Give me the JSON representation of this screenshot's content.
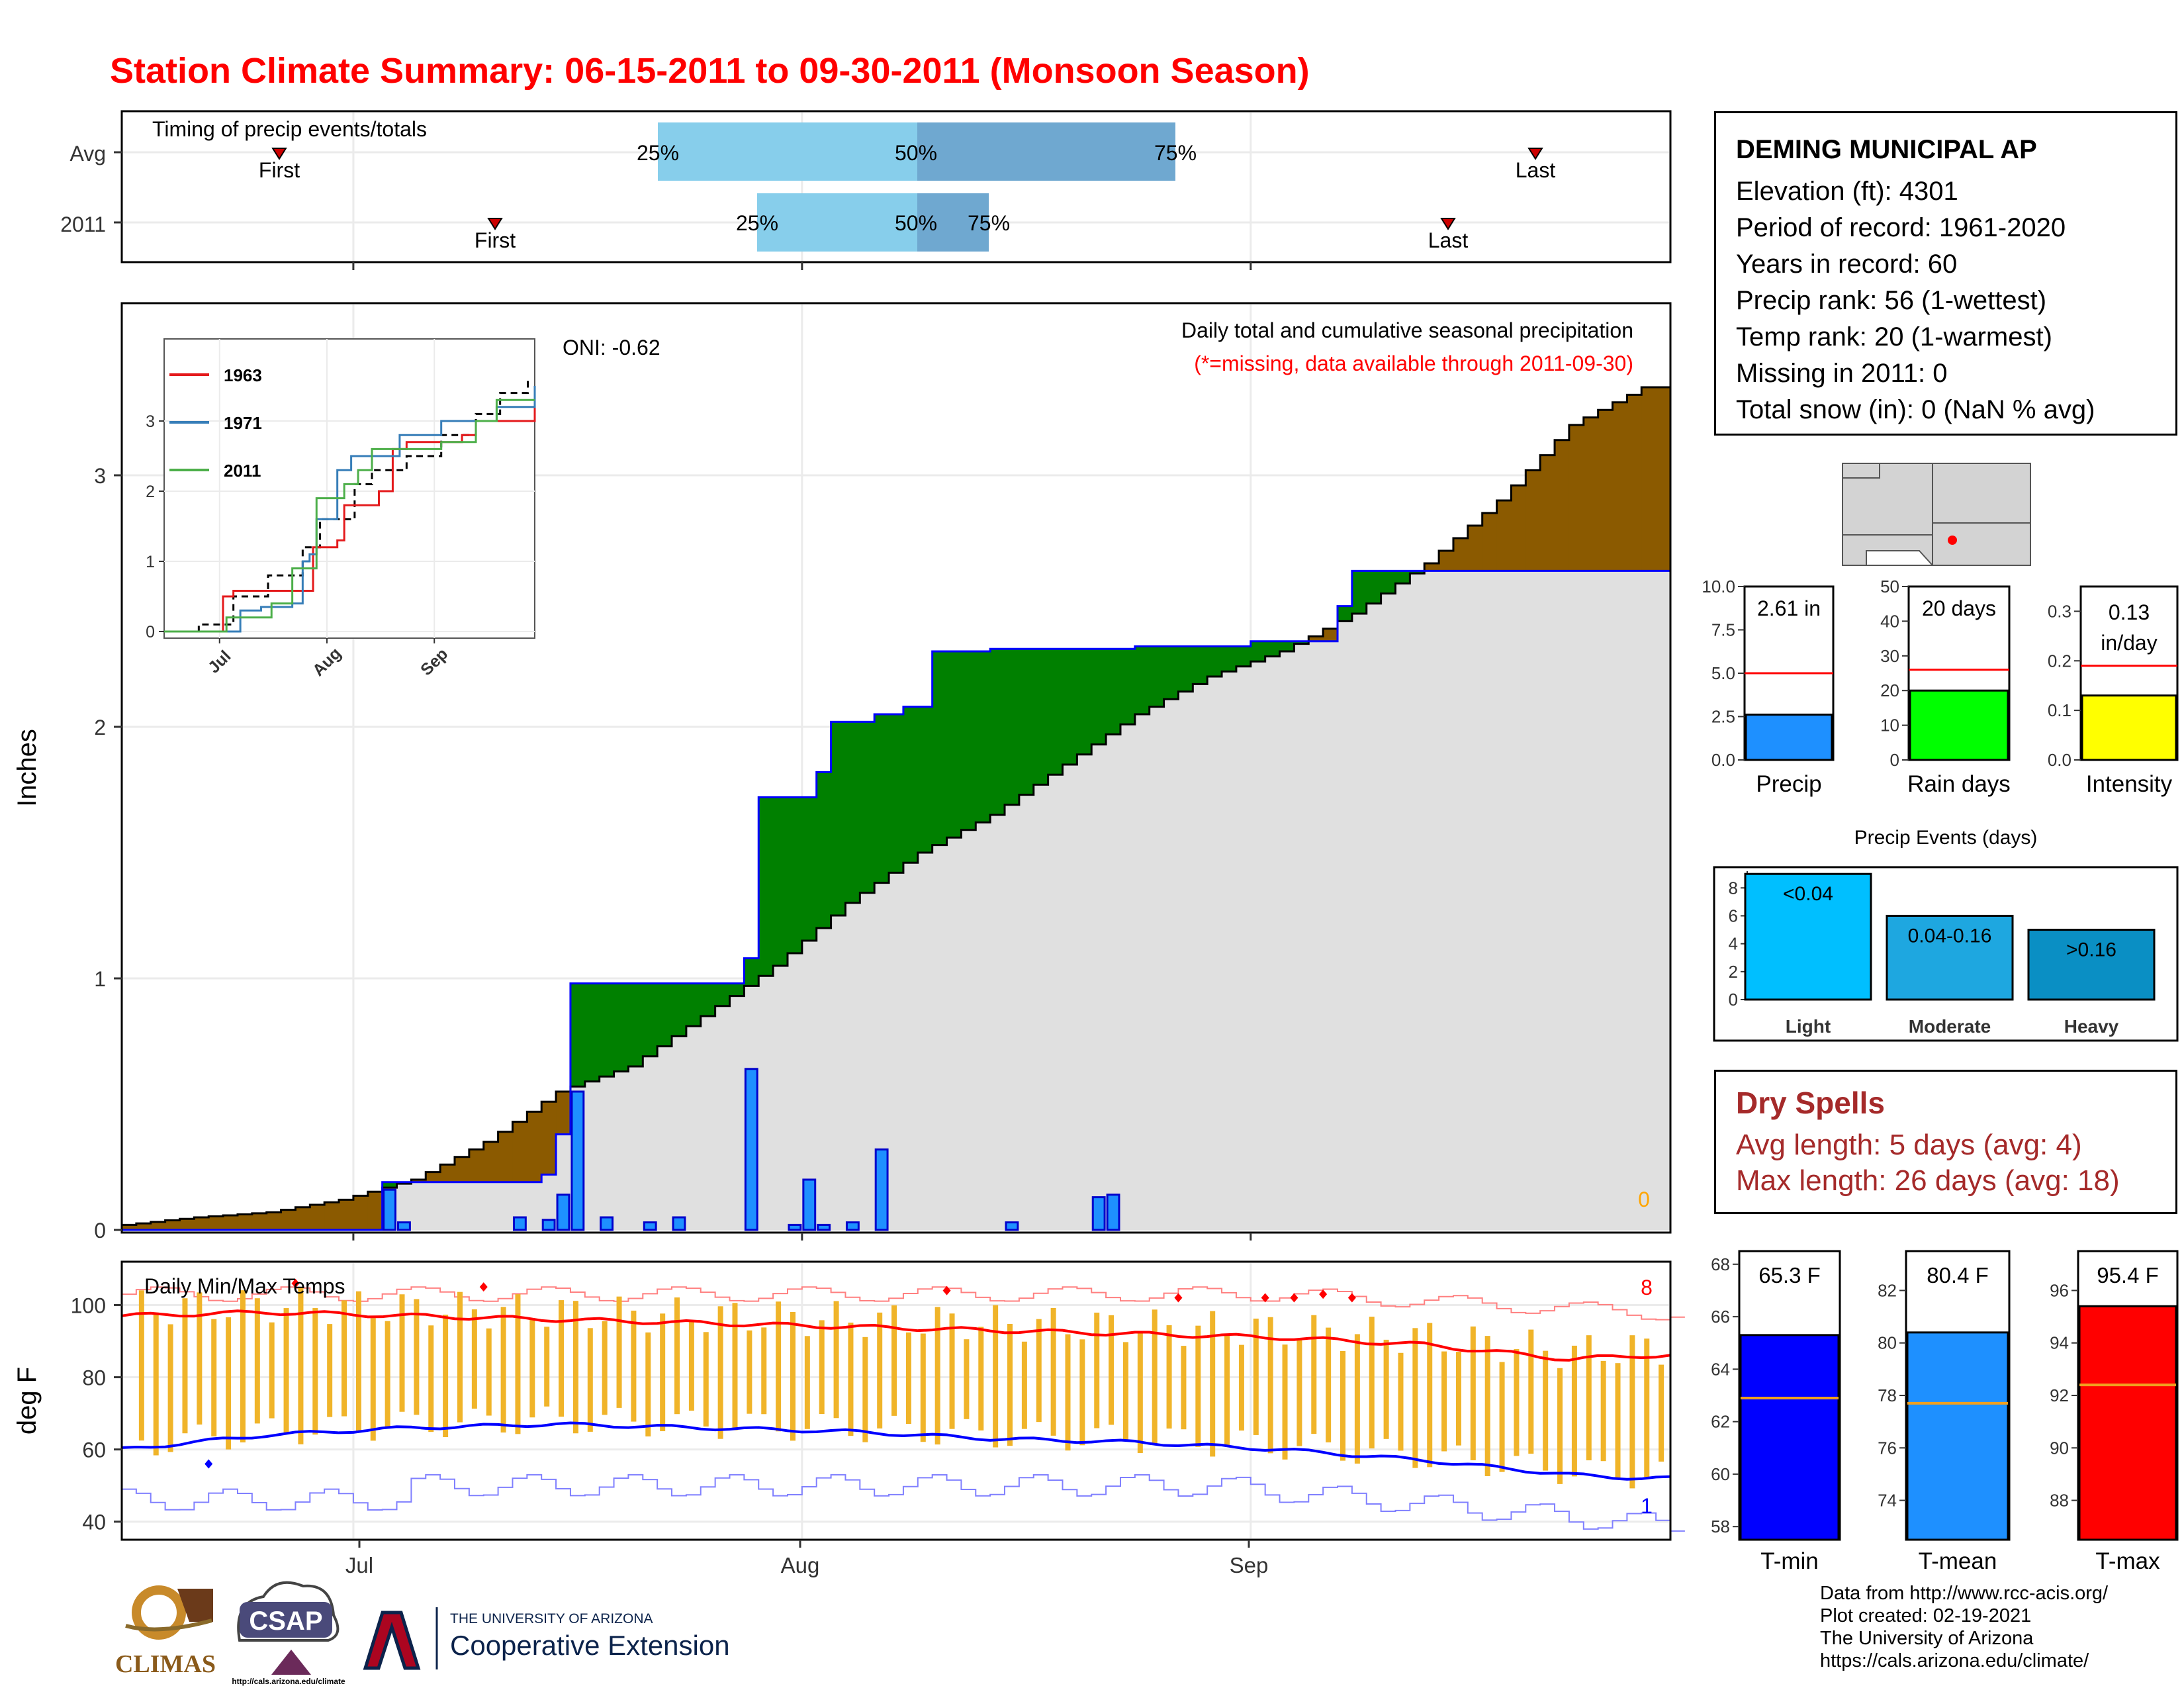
{
  "title": "Station Climate Summary: 06-15-2011 to 09-30-2011 (Monsoon Season)",
  "colors": {
    "title": "#ff0000",
    "deficit_fill": "#8b5a00",
    "surplus_fill": "#008000",
    "observed_fill": "#e0e0e0",
    "observed_line": "#0000ff",
    "daily_bar": "#1e90ff",
    "q_light": "#87ceeb",
    "q_dark": "#6fa8d0",
    "temp_bar": "#f0b429",
    "tmax_line": "#ff0000",
    "tmin_line": "#0000ff",
    "dry_spell_text": "#a52a2a"
  },
  "timing": {
    "title": "Timing of precip events/totals",
    "row_labels": [
      "Avg",
      "2011"
    ],
    "first_label": "First",
    "last_label": "Last",
    "pct_labels": [
      "25%",
      "50%",
      "75%"
    ]
  },
  "precip_panel": {
    "ylabel": "Inches",
    "oni": "ONI: -0.62",
    "caption1": "Daily total and cumulative seasonal precipitation",
    "caption2": "(*=missing, data available through 2011-09-30)",
    "missing_count": "0",
    "y_ticks": [
      "0",
      "1",
      "2",
      "3"
    ]
  },
  "inset": {
    "legend": [
      "1963",
      "1971",
      "2011"
    ],
    "legend_colors": [
      "#e41a1c",
      "#377eb8",
      "#4daf4a"
    ],
    "y_ticks": [
      "0",
      "1",
      "2",
      "3"
    ],
    "x_ticks": [
      "Jul",
      "Aug",
      "Sep"
    ]
  },
  "temp_panel": {
    "title": "Daily Min/Max Temps",
    "ylabel": "deg F",
    "y_ticks": [
      "40",
      "60",
      "80",
      "100"
    ],
    "record_high_count": "8",
    "record_low_count": "1",
    "x_ticks": [
      "Jul",
      "Aug",
      "Sep"
    ]
  },
  "station": {
    "name": "DEMING MUNICIPAL AP",
    "lines": [
      "Elevation (ft): 4301",
      "Period of record: 1961-2020",
      "Years in record: 60",
      "Precip rank: 56 (1-wettest)",
      "Temp rank: 20 (1-warmest)",
      "Missing in 2011: 0",
      "Total snow (in): 0 (NaN % avg)"
    ]
  },
  "mini_bars": {
    "precip": {
      "label": "Precip",
      "value_text": "2.61 in",
      "value": 2.61,
      "avg": 5.0,
      "ymax": 10,
      "ticks": [
        "0.0",
        "2.5",
        "5.0",
        "7.5",
        "10.0"
      ],
      "color": "#1e90ff"
    },
    "rain_days": {
      "label": "Rain days",
      "value_text": "20 days",
      "value": 20,
      "avg": 26,
      "ymax": 50,
      "ticks": [
        "0",
        "10",
        "20",
        "30",
        "40",
        "50"
      ],
      "color": "#00ff00"
    },
    "intensity": {
      "label": "Intensity",
      "value_text": "0.13",
      "value_text2": "in/day",
      "value": 0.13,
      "avg": 0.19,
      "ymax": 0.35,
      "ticks": [
        "0.0",
        "0.1",
        "0.2",
        "0.3"
      ],
      "color": "#ffff00"
    }
  },
  "events": {
    "title": "Precip Events (days)",
    "categories": [
      "Light",
      "Moderate",
      "Heavy"
    ],
    "bar_labels": [
      "<0.04",
      "0.04-0.16",
      ">0.16"
    ],
    "values": [
      9,
      6,
      5
    ],
    "ticks": [
      "0",
      "2",
      "4",
      "6",
      "8"
    ],
    "colors": [
      "#00bfff",
      "#1ea7e0",
      "#0a8fc4"
    ]
  },
  "dry_spells": {
    "title": "Dry Spells",
    "avg_length": "Avg length: 5 days (avg: 4)",
    "max_length": "Max length: 26 days (avg: 18)"
  },
  "temp_bars": {
    "tmin": {
      "label": "T-min",
      "value_text": "65.3 F",
      "value": 65.3,
      "avg": 62.9,
      "min": 57.5,
      "max": 68.5,
      "ticks": [
        "58",
        "60",
        "62",
        "64",
        "66",
        "68"
      ],
      "color": "#0000ff"
    },
    "tmean": {
      "label": "T-mean",
      "value_text": "80.4 F",
      "value": 80.4,
      "avg": 77.7,
      "min": 72.5,
      "max": 83.5,
      "ticks": [
        "74",
        "76",
        "78",
        "80",
        "82"
      ],
      "color": "#1e90ff"
    },
    "tmax": {
      "label": "T-max",
      "value_text": "95.4 F",
      "value": 95.4,
      "avg": 92.4,
      "min": 86.5,
      "max": 97.5,
      "ticks": [
        "88",
        "90",
        "92",
        "94",
        "96"
      ],
      "color": "#ff0000"
    }
  },
  "credits": [
    "Data from http://www.rcc-acis.org/",
    "Plot created: 02-19-2021",
    "The University of Arizona",
    "https://cals.arizona.edu/climate/"
  ],
  "logos": {
    "climas": "CLIMAS",
    "csap": "CSAP",
    "csap_url": "http://cals.arizona.edu/climate",
    "ua_small": "THE UNIVERSITY OF ARIZONA",
    "ua_big": "Cooperative Extension"
  },
  "chart_data": [
    {
      "type": "area",
      "title": "Daily total and cumulative seasonal precipitation",
      "ylabel": "Inches",
      "ylim": [
        0,
        3.75
      ],
      "x_ticks": [
        "Jul",
        "Aug",
        "Sep"
      ],
      "series": [
        {
          "name": "avg_cumulative",
          "x": [
            0,
            5,
            10,
            15,
            20,
            25,
            30,
            35,
            40,
            45,
            50,
            55,
            60,
            65,
            70,
            75,
            80,
            85,
            90,
            95,
            100,
            105
          ],
          "values": [
            0.02,
            0.05,
            0.07,
            0.12,
            0.2,
            0.35,
            0.55,
            0.65,
            0.85,
            1.05,
            1.3,
            1.5,
            1.65,
            1.85,
            2.05,
            2.2,
            2.3,
            2.45,
            2.65,
            2.9,
            3.2,
            3.35
          ]
        },
        {
          "name": "obs_cumulative",
          "x": [
            0,
            17,
            18,
            25,
            29,
            30,
            31,
            43,
            44,
            48,
            49,
            52,
            54,
            56,
            60,
            61,
            70,
            77,
            78,
            84,
            85,
            95,
            96,
            105
          ],
          "values": [
            0,
            0,
            0.19,
            0.19,
            0.22,
            0.38,
            0.98,
            1.08,
            1.72,
            1.82,
            2.02,
            2.05,
            2.08,
            2.3,
            2.31,
            2.31,
            2.32,
            2.32,
            2.34,
            2.48,
            2.62,
            2.62,
            2.62,
            2.62
          ]
        },
        {
          "name": "daily",
          "x": [
            18,
            19,
            27,
            29,
            30,
            31,
            33,
            36,
            38,
            43,
            46,
            47,
            48,
            50,
            52,
            61,
            67,
            68
          ],
          "values": [
            0.16,
            0.03,
            0.05,
            0.04,
            0.14,
            0.55,
            0.05,
            0.03,
            0.05,
            0.64,
            0.02,
            0.2,
            0.02,
            0.03,
            0.32,
            0.03,
            0.13,
            0.14
          ]
        }
      ]
    },
    {
      "type": "line",
      "title": "Daily Min/Max Temps",
      "ylabel": "deg F",
      "ylim": [
        35,
        112
      ],
      "x_ticks": [
        "Jul",
        "Aug",
        "Sep"
      ],
      "series": [
        {
          "name": "avg_max",
          "x": [
            0,
            10,
            20,
            30,
            40,
            50,
            60,
            70,
            80,
            90,
            100,
            105
          ],
          "values": [
            97,
            98,
            97,
            96,
            95,
            94,
            93,
            92,
            91,
            89,
            85,
            86
          ]
        },
        {
          "name": "avg_min",
          "x": [
            0,
            10,
            20,
            30,
            40,
            50,
            60,
            70,
            80,
            90,
            100,
            105
          ],
          "values": [
            60,
            64,
            66,
            67,
            66,
            65,
            63,
            62,
            60,
            57,
            53,
            52
          ]
        }
      ]
    },
    {
      "type": "bar",
      "title": "Precip Events (days)",
      "categories": [
        "Light",
        "Moderate",
        "Heavy"
      ],
      "values": [
        9,
        6,
        5
      ]
    }
  ]
}
